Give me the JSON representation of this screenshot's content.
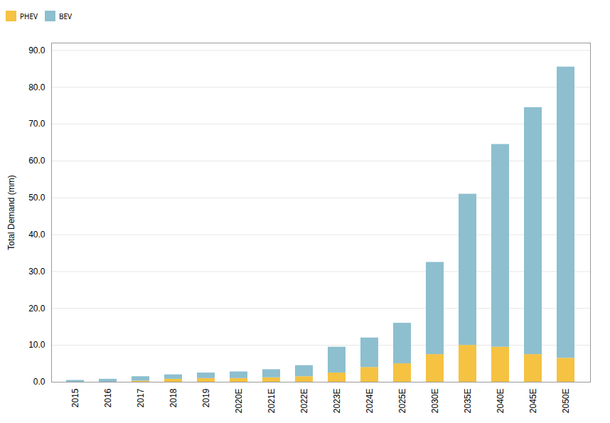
{
  "chart_data": {
    "type": "bar",
    "stacked": true,
    "ylabel": "Total Demand (mm)",
    "categories": [
      "2015",
      "2016",
      "2017",
      "2018",
      "2019",
      "2020E",
      "2021E",
      "2022E",
      "2023E",
      "2024E",
      "2025E",
      "2030E",
      "2035E",
      "2040E",
      "2045E",
      "2050E"
    ],
    "series": [
      {
        "name": "PHEV",
        "color": "#F5C242",
        "values": [
          0.0,
          0.0,
          0.3,
          0.8,
          1.0,
          1.0,
          1.2,
          1.5,
          2.5,
          4.0,
          5.0,
          7.5,
          10.0,
          9.5,
          7.5,
          6.5
        ]
      },
      {
        "name": "BEV",
        "color": "#8DBFCF",
        "values": [
          0.5,
          0.8,
          1.2,
          1.2,
          1.5,
          1.8,
          2.2,
          3.0,
          7.0,
          8.0,
          11.0,
          25.0,
          41.0,
          55.0,
          67.0,
          79.0
        ]
      }
    ],
    "ylim": [
      0,
      92
    ],
    "yticks": [
      {
        "value": 0.0,
        "label": "0.0"
      },
      {
        "value": 10.0,
        "label": "10.0"
      },
      {
        "value": 20.0,
        "label": "20.0"
      },
      {
        "value": 30.0,
        "label": "30.0"
      },
      {
        "value": 40.0,
        "label": "40.0"
      },
      {
        "value": 50.0,
        "label": "50.0"
      },
      {
        "value": 60.0,
        "label": "60.0"
      },
      {
        "value": 70.0,
        "label": "70.0"
      },
      {
        "value": 80.0,
        "label": "80.0"
      },
      {
        "value": 90.0,
        "label": "90.0"
      }
    ],
    "grid": true,
    "legend": "top"
  }
}
